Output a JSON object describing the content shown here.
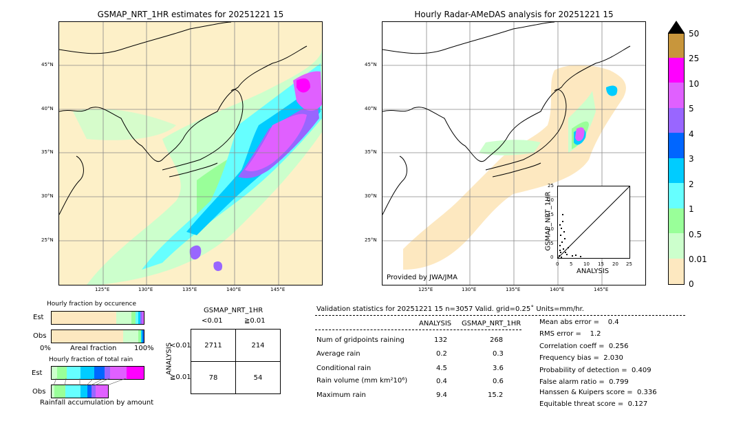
{
  "left_map": {
    "title": "GSMAP_NRT_1HR estimates for 20251221 15",
    "lat_ticks": [
      "45°N",
      "40°N",
      "35°N",
      "30°N",
      "25°N"
    ],
    "lon_ticks": [
      "125°E",
      "130°E",
      "135°E",
      "140°E",
      "145°E"
    ]
  },
  "right_map": {
    "title": "Hourly Radar-AMeDAS analysis for 20251221 15",
    "lat_ticks": [
      "45°N",
      "40°N",
      "35°N",
      "30°N",
      "25°N"
    ],
    "lon_ticks": [
      "125°E",
      "130°E",
      "135°E",
      "140°E",
      "145°E"
    ],
    "credit": "Provided by JWA/JMA"
  },
  "colorbar": {
    "labels": [
      "50",
      "25",
      "10",
      "5",
      "4",
      "3",
      "2",
      "1",
      "0.5",
      "0.01",
      "0"
    ],
    "colors": [
      "#c8963c",
      "#ff00ff",
      "#e060ff",
      "#9966ff",
      "#0066ff",
      "#00ccff",
      "#66ffff",
      "#99ff99",
      "#ccffcc",
      "#fde8c0"
    ]
  },
  "scatter": {
    "xlabel": "ANALYSIS",
    "ylabel": "GSMAP_NRT_1HR",
    "ticks": [
      "0",
      "5",
      "10",
      "15",
      "20",
      "25"
    ]
  },
  "fraction_occ": {
    "title": "Hourly fraction by occurence",
    "est": "Est",
    "obs": "Obs",
    "xmin": "0%",
    "xmid": "Areal fraction",
    "xmax": "100%"
  },
  "fraction_total": {
    "title": "Hourly fraction of total rain",
    "est": "Est",
    "obs": "Obs",
    "footer": "Rainfall accumulation by amount"
  },
  "contingency": {
    "title": "GSMAP_NRT_1HR",
    "col1": "<0.01",
    "col2": "≧0.01",
    "side": "ANALYSIS",
    "row1": "<0.01",
    "row2": "≧0.01",
    "a": "2711",
    "b": "214",
    "c": "78",
    "d": "54"
  },
  "validation": {
    "header": "Validation statistics for 20251221 15  n=3057 Valid. grid=0.25˚ Units=mm/hr.",
    "col_analysis": "ANALYSIS",
    "col_gsmap": "GSMAP_NRT_1HR",
    "rows": [
      {
        "label": "Num of gridpoints raining",
        "analysis": "132",
        "gsmap": "268"
      },
      {
        "label": "Average rain",
        "analysis": "0.2",
        "gsmap": "0.3"
      },
      {
        "label": "Conditional rain",
        "analysis": "4.5",
        "gsmap": "3.6"
      },
      {
        "label": "Rain volume (mm km²10⁶)",
        "analysis": "0.4",
        "gsmap": "0.6"
      },
      {
        "label": "Maximum rain",
        "analysis": "9.4",
        "gsmap": "15.2"
      }
    ],
    "scores": [
      "Mean abs error =    0.4",
      "RMS error =    1.2",
      "Correlation coeff =  0.256",
      "Frequency bias =  2.030",
      "Probability of detection =  0.409",
      "False alarm ratio =  0.799",
      "Hanssen & Kuipers score =  0.336",
      "Equitable threat score =  0.127"
    ]
  }
}
